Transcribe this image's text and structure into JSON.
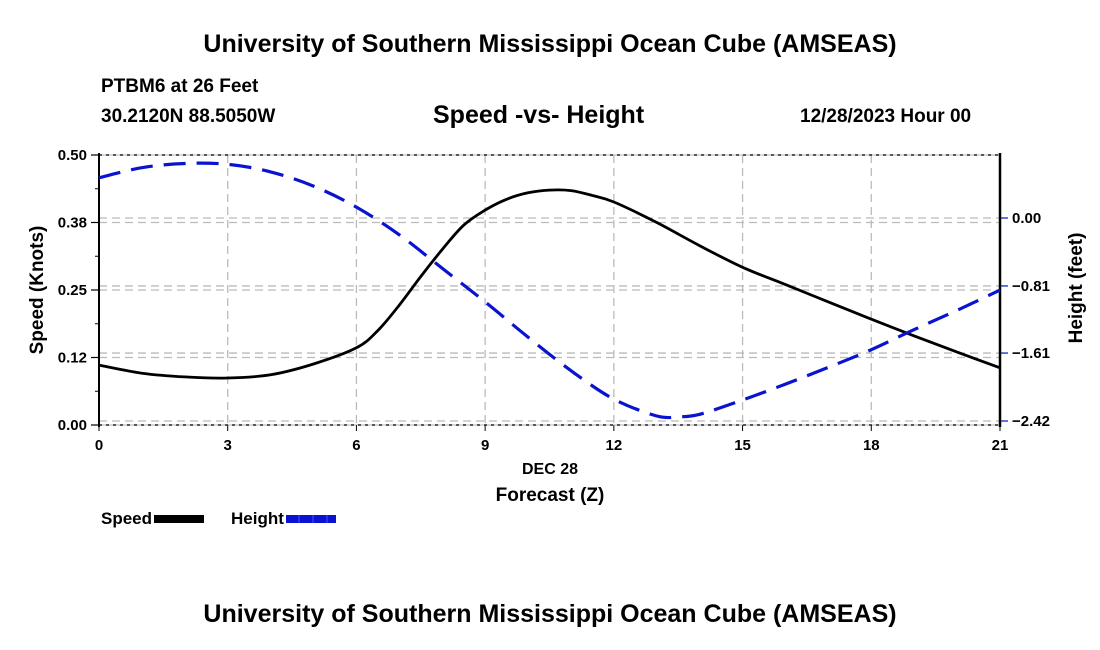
{
  "header": {
    "main_title": "University of Southern Mississippi Ocean Cube (AMSEAS)",
    "station": "PTBM6 at 26 Feet",
    "coordinates": "30.2120N  88.5050W",
    "subtitle": "Speed -vs- Height",
    "datetime": "12/28/2023 Hour 00"
  },
  "footer": {
    "title": "University of Southern Mississippi Ocean Cube (AMSEAS)"
  },
  "legend": {
    "speed_label": "Speed",
    "height_label": "Height"
  },
  "colors": {
    "speed": "#000000",
    "height": "#0a14d0",
    "grid": "#bbbbbb"
  },
  "chart_data": {
    "type": "line",
    "title": "Speed -vs- Height",
    "xlabel": "Forecast (Z)",
    "xlabel_date": "DEC 28",
    "ylabel": "Speed (Knots)",
    "y2label": "Height (feet)",
    "xlim": [
      0,
      21
    ],
    "ylim": [
      0,
      0.5
    ],
    "y2lim": [
      -2.42,
      0.81
    ],
    "xticks": [
      "0",
      "3",
      "6",
      "9",
      "12",
      "15",
      "18",
      "21"
    ],
    "yticks": [
      "0.00",
      "0.12",
      "0.25",
      "0.38",
      "0.50"
    ],
    "ytick_values": [
      0,
      0.125,
      0.25,
      0.375,
      0.5
    ],
    "y2ticks": [
      "0.00",
      "−0.81",
      "−1.61",
      "−2.42"
    ],
    "y2tick_values": [
      0,
      -0.81,
      -1.61,
      -2.42
    ],
    "grid": true,
    "legend_position": "bottom-left",
    "series": [
      {
        "name": "Speed",
        "axis": "left",
        "style": "solid",
        "x": [
          0,
          1,
          2,
          3,
          4,
          5,
          6,
          6.5,
          7,
          7.5,
          8,
          8.5,
          9,
          9.5,
          10,
          10.5,
          11,
          11.5,
          12,
          13,
          14,
          15,
          16,
          17,
          18,
          19,
          20,
          21
        ],
        "values": [
          0.111,
          0.096,
          0.089,
          0.087,
          0.093,
          0.113,
          0.143,
          0.175,
          0.222,
          0.275,
          0.325,
          0.37,
          0.398,
          0.418,
          0.43,
          0.435,
          0.434,
          0.425,
          0.413,
          0.375,
          0.332,
          0.292,
          0.26,
          0.228,
          0.196,
          0.165,
          0.135,
          0.106
        ]
      },
      {
        "name": "Height",
        "axis": "right",
        "style": "dashed",
        "x": [
          0,
          1,
          2,
          3,
          4,
          5,
          6,
          7,
          8,
          9,
          10,
          11,
          12,
          13,
          13.5,
          14,
          15,
          16,
          17,
          18,
          19,
          20,
          21
        ],
        "values": [
          0.48,
          0.6,
          0.65,
          0.64,
          0.55,
          0.38,
          0.13,
          -0.2,
          -0.6,
          -1.0,
          -1.42,
          -1.82,
          -2.16,
          -2.36,
          -2.37,
          -2.34,
          -2.17,
          -1.98,
          -1.78,
          -1.57,
          -1.33,
          -1.1,
          -0.86
        ]
      }
    ]
  }
}
